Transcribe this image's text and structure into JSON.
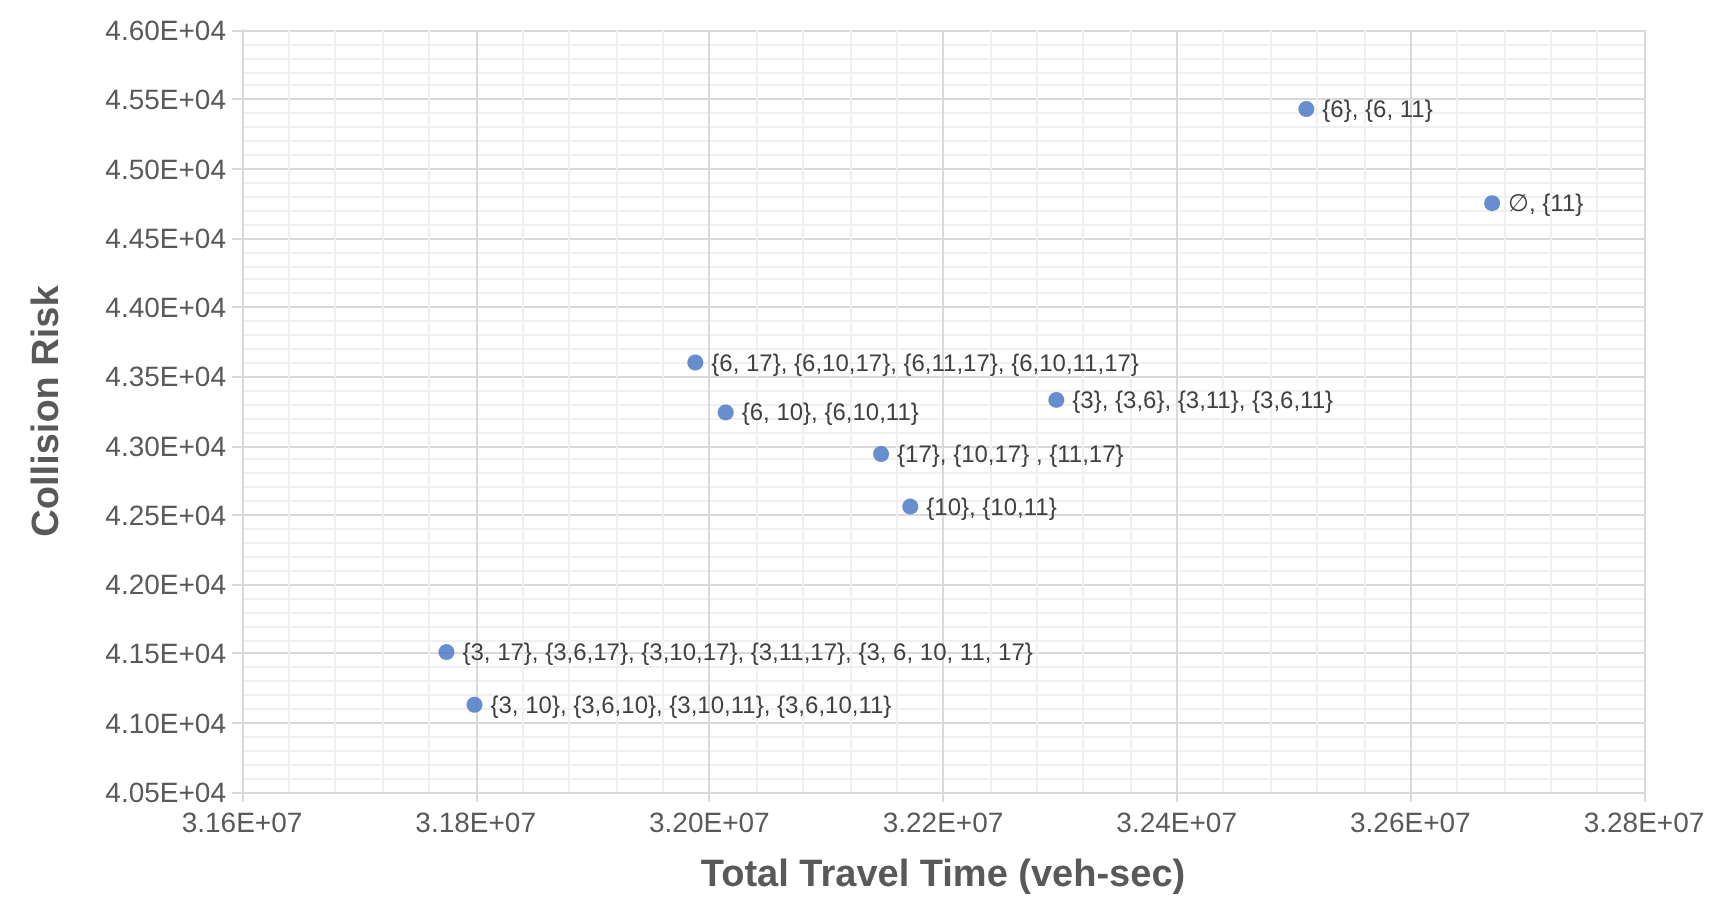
{
  "chart_data": {
    "type": "scatter",
    "xlabel": "Total Travel Time (veh-sec)",
    "ylabel": "Collision Risk",
    "x": [
      32511000,
      32670000,
      31988000,
      32014000,
      32297000,
      32147000,
      32172000,
      31775000,
      31799000
    ],
    "values": [
      45430,
      44750,
      43600,
      43240,
      43330,
      42940,
      42560,
      41510,
      41130
    ],
    "color": "#4472c4",
    "marker": "circle",
    "grid": true,
    "annotations": [
      {
        "text": "{6}, {6, 11}",
        "x": 32511000,
        "y": 45430
      },
      {
        "text": "∅, {11}",
        "x": 32670000,
        "y": 44750
      },
      {
        "text": "{6, 17}, {6,10,17}, {6,11,17}, {6,10,11,17}",
        "x": 31988000,
        "y": 43600
      },
      {
        "text": "{6, 10}, {6,10,11}",
        "x": 32014000,
        "y": 43240
      },
      {
        "text": "{3}, {3,6}, {3,11}, {3,6,11}",
        "x": 32297000,
        "y": 43330
      },
      {
        "text": "{17}, {10,17} , {11,17}",
        "x": 32147000,
        "y": 42940
      },
      {
        "text": "{10}, {10,11}",
        "x": 32172000,
        "y": 42560
      },
      {
        "text": "{3, 17}, {3,6,17}, {3,10,17}, {3,11,17}, {3, 6, 10, 11, 17}",
        "x": 31775000,
        "y": 41510
      },
      {
        "text": "{3, 10}, {3,6,10}, {3,10,11}, {3,6,10,11}",
        "x": 31799000,
        "y": 41130
      }
    ],
    "xlim": [
      31600000,
      32800000
    ],
    "xticks": [
      {
        "value": 31600000,
        "label": "3.16E+07"
      },
      {
        "value": 31800000,
        "label": "3.18E+07"
      },
      {
        "value": 32000000,
        "label": "3.20E+07"
      },
      {
        "value": 32200000,
        "label": "3.22E+07"
      },
      {
        "value": 32400000,
        "label": "3.24E+07"
      },
      {
        "value": 32600000,
        "label": "3.26E+07"
      },
      {
        "value": 32800000,
        "label": "3.28E+07"
      }
    ],
    "ylim": [
      40500,
      46000
    ],
    "yticks": [
      {
        "value": 40500,
        "label": "4.05E+04"
      },
      {
        "value": 41000,
        "label": "4.10E+04"
      },
      {
        "value": 41500,
        "label": "4.15E+04"
      },
      {
        "value": 42000,
        "label": "4.20E+04"
      },
      {
        "value": 42500,
        "label": "4.25E+04"
      },
      {
        "value": 43000,
        "label": "4.30E+04"
      },
      {
        "value": 43500,
        "label": "4.35E+04"
      },
      {
        "value": 44000,
        "label": "4.40E+04"
      },
      {
        "value": 44500,
        "label": "4.45E+04"
      },
      {
        "value": 45000,
        "label": "4.50E+04"
      },
      {
        "value": 45500,
        "label": "4.55E+04"
      },
      {
        "value": 46000,
        "label": "4.60E+04"
      }
    ]
  }
}
